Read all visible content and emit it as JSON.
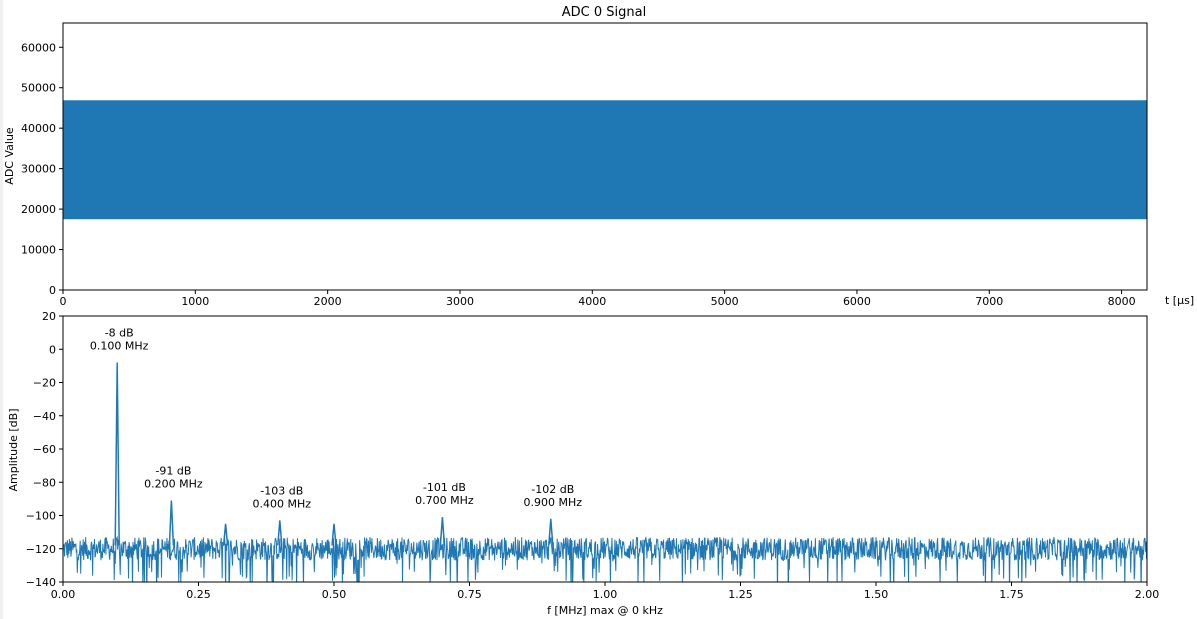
{
  "chart_data": [
    {
      "type": "area",
      "title": "ADC 0 Signal",
      "xlabel": "t [$\\mu s$]",
      "xlabel_display": "t [μs]",
      "ylabel": "ADC Value",
      "xlim": [
        0,
        8192
      ],
      "ylim": [
        0,
        66000
      ],
      "xticks": [
        "0",
        "1000",
        "2000",
        "3000",
        "4000",
        "5000",
        "6000",
        "7000",
        "8000"
      ],
      "yticks": [
        "0",
        "10000",
        "20000",
        "30000",
        "40000",
        "50000",
        "60000"
      ],
      "signal_band": {
        "min": 17500,
        "max": 46900
      },
      "color": "#1f77b4",
      "grid": false
    },
    {
      "type": "line",
      "xlabel": "f [MHz] max @ 0 kHz",
      "ylabel": "Amplitude [dB]",
      "xlim": [
        0,
        2.0
      ],
      "ylim": [
        -140,
        20
      ],
      "xticks": [
        "0.00",
        "0.25",
        "0.50",
        "0.75",
        "1.00",
        "1.25",
        "1.50",
        "1.75",
        "2.00"
      ],
      "yticks": [
        "20",
        "0",
        "−20",
        "−40",
        "−60",
        "−80",
        "−100",
        "−120",
        "−140"
      ],
      "noise_floor_db": -120,
      "color": "#1f77b4",
      "grid": false,
      "peaks": [
        {
          "f": 0.1,
          "db": -8,
          "label_db": "-8 dB",
          "label_f": "0.100 MHz"
        },
        {
          "f": 0.2,
          "db": -91,
          "label_db": "-91 dB",
          "label_f": "0.200 MHz"
        },
        {
          "f": 0.3,
          "db": -105
        },
        {
          "f": 0.4,
          "db": -103,
          "label_db": "-103 dB",
          "label_f": "0.400 MHz"
        },
        {
          "f": 0.5,
          "db": -105
        },
        {
          "f": 0.7,
          "db": -101,
          "label_db": "-101 dB",
          "label_f": "0.700 MHz"
        },
        {
          "f": 0.9,
          "db": -102,
          "label_db": "-102 dB",
          "label_f": "0.900 MHz"
        }
      ]
    }
  ]
}
